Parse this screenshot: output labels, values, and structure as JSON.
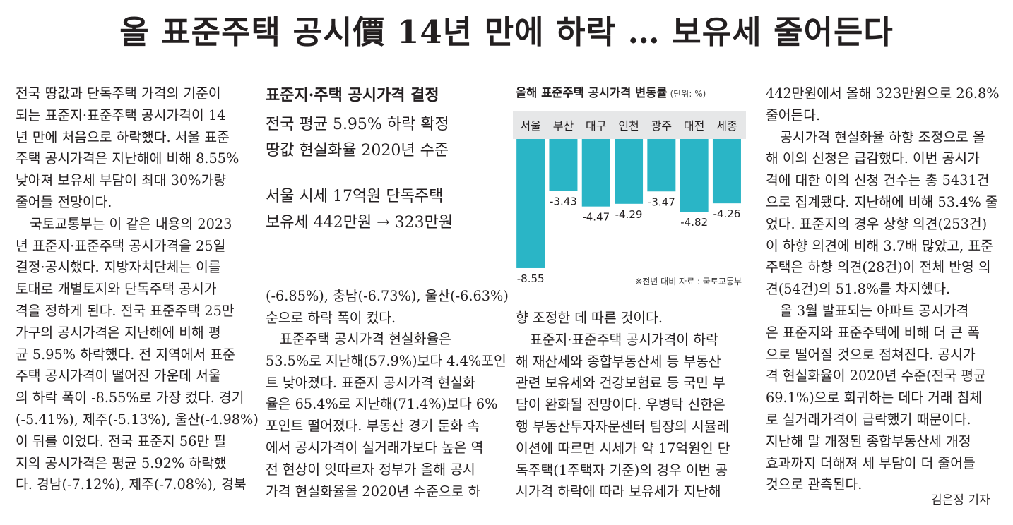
{
  "headline": "올 표준주택 공시價 14년 만에 하락 … 보유세 줄어든다",
  "column1": [
    {
      "text": "전국 땅값과 단독주택 가격의 기준이",
      "indent": false
    },
    {
      "text": "되는 표준지·표준주택 공시가격이 14",
      "indent": false
    },
    {
      "text": "년 만에 처음으로 하락했다. 서울 표준",
      "indent": false
    },
    {
      "text": "주택 공시가격은 지난해에 비해 8.55%",
      "indent": false
    },
    {
      "text": "낮아져 보유세 부담이 최대 30%가량",
      "indent": false
    },
    {
      "text": "줄어들 전망이다.",
      "indent": false
    },
    {
      "text": "국토교통부는 이 같은 내용의 2023",
      "indent": true
    },
    {
      "text": "년 표준지·표준주택 공시가격을 25일",
      "indent": false
    },
    {
      "text": "결정·공시했다. 지방자치단체는 이를",
      "indent": false
    },
    {
      "text": "토대로 개별토지와 단독주택 공시가",
      "indent": false
    },
    {
      "text": "격을 정하게 된다. 전국 표준주택 25만",
      "indent": false
    },
    {
      "text": "가구의 공시가격은 지난해에 비해 평",
      "indent": false
    },
    {
      "text": "균 5.95% 하락했다. 전 지역에서 표준",
      "indent": false
    },
    {
      "text": "주택 공시가격이 떨어진 가운데 서울",
      "indent": false
    },
    {
      "text": "의 하락 폭이 -8.55%로 가장 컸다. 경기",
      "indent": false
    },
    {
      "text": "(-5.41%), 제주(-5.13%), 울산(-4.98%)",
      "indent": false
    },
    {
      "text": "이 뒤를 이었다. 전국 표준지 56만 필",
      "indent": false
    },
    {
      "text": "지의 공시가격은 평균 5.92% 하락했",
      "indent": false
    },
    {
      "text": "다. 경남(-7.12%), 제주(-7.08%), 경북",
      "indent": false
    }
  ],
  "summary": {
    "title": "표준지·주택 공시가격 결정",
    "group1": [
      "전국 평균 5.95% 하락 확정",
      "땅값 현실화율 2020년 수준"
    ],
    "group2": [
      "서울 시세 17억원 단독주택",
      "보유세 442만원 → 323만원"
    ]
  },
  "column2": [
    {
      "text": "(-6.85%), 충남(-6.73%), 울산(-6.63%)",
      "indent": false
    },
    {
      "text": "순으로 하락 폭이 컸다.",
      "indent": false
    }
  ],
  "column2b": [
    {
      "text": "표준주택 공시가격 현실화율은",
      "indent": true
    },
    {
      "text": "53.5%로 지난해(57.9%)보다 4.4%포인",
      "indent": false
    },
    {
      "text": "트 낮아졌다. 표준지 공시가격 현실화",
      "indent": false
    },
    {
      "text": "율은 65.4%로 지난해(71.4%)보다 6%",
      "indent": false
    },
    {
      "text": "포인트 떨어졌다. 부동산 경기 둔화 속",
      "indent": false
    },
    {
      "text": "에서 공시가격이 실거래가보다 높은 역",
      "indent": false
    },
    {
      "text": "전 현상이 잇따르자 정부가 올해 공시",
      "indent": false
    },
    {
      "text": "가격 현실화율을 2020년 수준으로 하",
      "indent": false
    }
  ],
  "chart": {
    "title": "올해 표준주택 공시가격 변동률",
    "unit": "(단위: %)",
    "note": "※전년 대비    자료 : 국토교통부",
    "color": "#2ab5c6"
  },
  "chart_data": {
    "type": "bar",
    "title": "올해 표준주택 공시가격 변동률",
    "unit": "%",
    "categories": [
      "서울",
      "부산",
      "대구",
      "인천",
      "광주",
      "대전",
      "세종"
    ],
    "values": [
      -8.55,
      -3.43,
      -4.47,
      -4.29,
      -3.47,
      -4.82,
      -4.26
    ],
    "labels": [
      "-8.55",
      "-3.43",
      "-4.47",
      "-4.29",
      "-3.47",
      "-4.82",
      "-4.26"
    ],
    "ylim": [
      -9,
      0
    ],
    "grid": false
  },
  "column3": [
    {
      "text": "향 조정한 데 따른 것이다.",
      "indent": false
    },
    {
      "text": "표준지·표준주택 공시가격이 하락",
      "indent": true
    },
    {
      "text": "해 재산세와 종합부동산세 등 부동산",
      "indent": false
    },
    {
      "text": "관련 보유세와 건강보험료 등 국민 부",
      "indent": false
    },
    {
      "text": "담이 완화될 전망이다. 우병탁 신한은",
      "indent": false
    },
    {
      "text": "행 부동산투자자문센터 팀장의 시뮬레",
      "indent": false
    },
    {
      "text": "이션에 따르면 시세가 약 17억원인 단",
      "indent": false
    },
    {
      "text": "독주택(1주택자 기준)의 경우 이번 공",
      "indent": false
    },
    {
      "text": "시가격 하락에 따라 보유세가 지난해",
      "indent": false
    }
  ],
  "column4": [
    {
      "text": "442만원에서 올해 323만원으로 26.8%",
      "indent": false
    },
    {
      "text": "줄어든다.",
      "indent": false
    },
    {
      "text": "공시가격 현실화율 하향 조정으로 올",
      "indent": true
    },
    {
      "text": "해 이의 신청은 급감했다. 이번 공시가",
      "indent": false
    },
    {
      "text": "격에 대한 이의 신청 건수는 총 5431건",
      "indent": false
    },
    {
      "text": "으로 집계됐다. 지난해에 비해 53.4% 줄",
      "indent": false
    },
    {
      "text": "었다. 표준지의 경우 상향 의견(253건)",
      "indent": false
    },
    {
      "text": "이 하향 의견에 비해 3.7배 많았고, 표준",
      "indent": false
    },
    {
      "text": "주택은 하향 의견(28건)이 전체 반영 의",
      "indent": false
    },
    {
      "text": "견(54건)의 51.8%를 차지했다.",
      "indent": false
    },
    {
      "text": "올 3월 발표되는 아파트 공시가격",
      "indent": true
    },
    {
      "text": "은 표준지와 표준주택에 비해 더 큰 폭",
      "indent": false
    },
    {
      "text": "으로 떨어질 것으로 점쳐진다. 공시가",
      "indent": false
    },
    {
      "text": "격 현실화율이 2020년 수준(전국 평균",
      "indent": false
    },
    {
      "text": "69.1%)으로 회귀하는 데다 거래 침체",
      "indent": false
    },
    {
      "text": "로 실거래가격이 급락했기 때문이다.",
      "indent": false
    },
    {
      "text": "지난해 말 개정된 종합부동산세 개정",
      "indent": false
    },
    {
      "text": "효과까지 더해져 세 부담이 더 줄어들",
      "indent": false
    },
    {
      "text": "것으로 관측된다.",
      "indent": false
    }
  ],
  "byline": "김은정 기자"
}
